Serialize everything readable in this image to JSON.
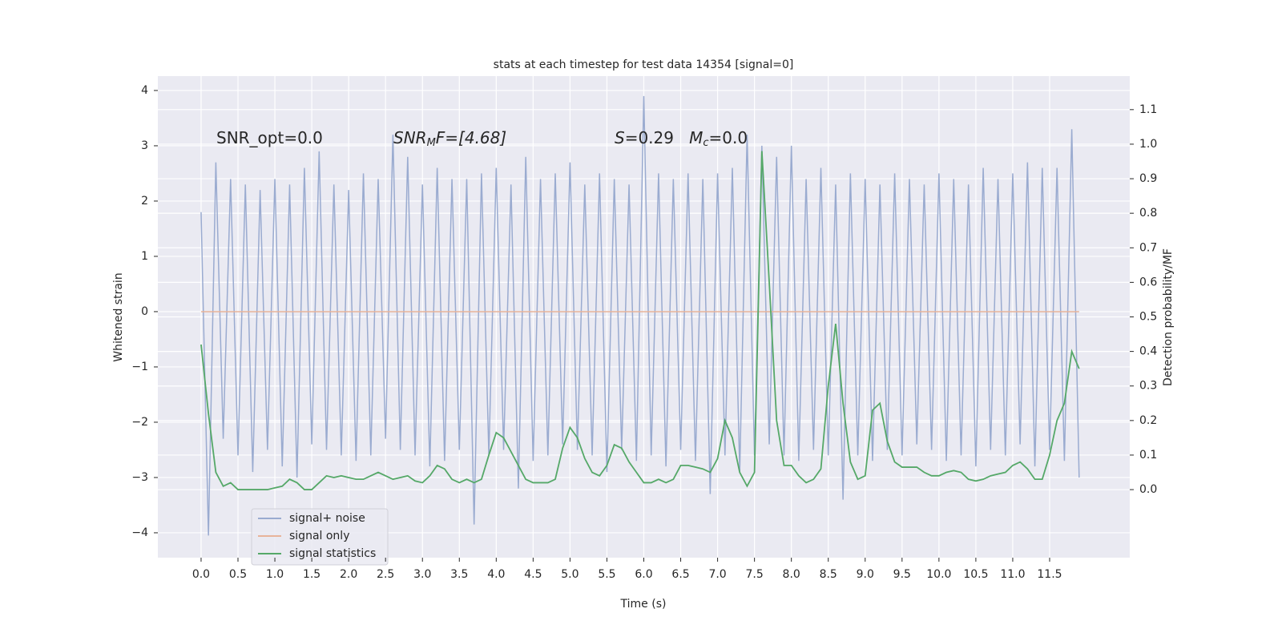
{
  "chart_data": {
    "type": "line",
    "title": "stats at each timestep for test data 14354 [signal=0]",
    "x_label": "Time (s)",
    "y_label": "Whitened strain",
    "y2_label": "Detection probability/MF",
    "annotations": [
      [
        "SNR_opt=0.0"
      ],
      [
        "SNR",
        "M",
        "F=[4.68]"
      ],
      [
        "S",
        "=0.29   ",
        "M",
        "c",
        "=0.0"
      ]
    ],
    "x": [
      0.0,
      0.1,
      0.2,
      0.3,
      0.4,
      0.5,
      0.6,
      0.7,
      0.8,
      0.9,
      1.0,
      1.1,
      1.2,
      1.3,
      1.4,
      1.5,
      1.6,
      1.7,
      1.8,
      1.9,
      2.0,
      2.1,
      2.2,
      2.3,
      2.4,
      2.5,
      2.6,
      2.7,
      2.8,
      2.9,
      3.0,
      3.1,
      3.2,
      3.3,
      3.4,
      3.5,
      3.6,
      3.7,
      3.8,
      3.9,
      4.0,
      4.1,
      4.2,
      4.3,
      4.4,
      4.5,
      4.6,
      4.7,
      4.8,
      4.9,
      5.0,
      5.1,
      5.2,
      5.3,
      5.4,
      5.5,
      5.6,
      5.7,
      5.8,
      5.9,
      6.0,
      6.1,
      6.2,
      6.3,
      6.4,
      6.5,
      6.6,
      6.7,
      6.8,
      6.9,
      7.0,
      7.1,
      7.2,
      7.3,
      7.4,
      7.5,
      7.6,
      7.7,
      7.8,
      7.9,
      8.0,
      8.1,
      8.2,
      8.3,
      8.4,
      8.5,
      8.6,
      8.7,
      8.8,
      8.9,
      9.0,
      9.1,
      9.2,
      9.3,
      9.4,
      9.5,
      9.6,
      9.7,
      9.8,
      9.9,
      10.0,
      10.1,
      10.2,
      10.3,
      10.4,
      10.5,
      10.6,
      10.7,
      10.8,
      10.9,
      11.0,
      11.1,
      11.2,
      11.3,
      11.4,
      11.5,
      11.6,
      11.7,
      11.8,
      11.9
    ],
    "series": [
      {
        "name": "signal+ noise",
        "color": "#9aabd0",
        "values": [
          1.8,
          -4.05,
          2.7,
          -2.3,
          2.4,
          -2.6,
          2.3,
          -2.9,
          2.2,
          -2.5,
          2.4,
          -2.8,
          2.3,
          -3.0,
          2.6,
          -2.4,
          2.9,
          -2.5,
          2.3,
          -2.6,
          2.2,
          -2.7,
          2.5,
          -2.6,
          2.4,
          -2.3,
          3.2,
          -2.5,
          2.8,
          -2.6,
          2.3,
          -2.8,
          2.6,
          -2.7,
          2.4,
          -2.5,
          2.4,
          -3.85,
          2.5,
          -2.6,
          2.6,
          -2.5,
          2.3,
          -3.2,
          2.8,
          -2.7,
          2.4,
          -2.6,
          2.5,
          -2.4,
          2.7,
          -2.5,
          2.3,
          -2.6,
          2.5,
          -2.9,
          2.4,
          -2.5,
          2.3,
          -2.7,
          3.9,
          -2.6,
          2.5,
          -2.8,
          2.4,
          -2.5,
          2.5,
          -2.7,
          2.4,
          -3.3,
          2.5,
          -2.6,
          2.6,
          -2.9,
          3.2,
          -2.6,
          3.0,
          -2.4,
          2.8,
          -2.6,
          3.0,
          -2.7,
          2.4,
          -2.5,
          2.6,
          -2.6,
          2.3,
          -3.4,
          2.5,
          -2.6,
          2.4,
          -2.7,
          2.3,
          -2.5,
          2.5,
          -2.6,
          2.4,
          -2.4,
          2.3,
          -2.5,
          2.5,
          -2.7,
          2.4,
          -2.6,
          2.3,
          -2.8,
          2.6,
          -2.5,
          2.4,
          -2.6,
          2.5,
          -2.4,
          2.7,
          -2.8,
          2.6,
          -2.5,
          2.6,
          -2.7,
          3.3,
          -3.0
        ]
      },
      {
        "name": "signal only",
        "color": "#e8b39a",
        "values": [
          0,
          0,
          0,
          0,
          0,
          0,
          0,
          0,
          0,
          0,
          0,
          0,
          0,
          0,
          0,
          0,
          0,
          0,
          0,
          0,
          0,
          0,
          0,
          0,
          0,
          0,
          0,
          0,
          0,
          0,
          0,
          0,
          0,
          0,
          0,
          0,
          0,
          0,
          0,
          0,
          0,
          0,
          0,
          0,
          0,
          0,
          0,
          0,
          0,
          0,
          0,
          0,
          0,
          0,
          0,
          0,
          0,
          0,
          0,
          0,
          0,
          0,
          0,
          0,
          0,
          0,
          0,
          0,
          0,
          0,
          0,
          0,
          0,
          0,
          0,
          0,
          0,
          0,
          0,
          0,
          0,
          0,
          0,
          0,
          0,
          0,
          0,
          0,
          0,
          0,
          0,
          0,
          0,
          0,
          0,
          0,
          0,
          0,
          0,
          0,
          0,
          0,
          0,
          0,
          0,
          0,
          0,
          0,
          0,
          0,
          0,
          0,
          0,
          0,
          0,
          0,
          0,
          0,
          0,
          0
        ]
      },
      {
        "name": "signal statistics",
        "color": "#55a868",
        "axis": "y2",
        "values": [
          0.42,
          0.22,
          0.05,
          0.01,
          0.02,
          0.0,
          0.0,
          0.0,
          0.0,
          0.0,
          0.005,
          0.01,
          0.03,
          0.02,
          0.0,
          0.0,
          0.02,
          0.04,
          0.035,
          0.04,
          0.035,
          0.03,
          0.03,
          0.04,
          0.05,
          0.04,
          0.03,
          0.035,
          0.04,
          0.025,
          0.02,
          0.04,
          0.07,
          0.06,
          0.03,
          0.02,
          0.03,
          0.02,
          0.03,
          0.1,
          0.165,
          0.15,
          0.11,
          0.07,
          0.03,
          0.02,
          0.02,
          0.02,
          0.03,
          0.12,
          0.18,
          0.15,
          0.09,
          0.05,
          0.04,
          0.07,
          0.13,
          0.12,
          0.08,
          0.05,
          0.02,
          0.02,
          0.03,
          0.02,
          0.03,
          0.07,
          0.07,
          0.065,
          0.06,
          0.05,
          0.09,
          0.2,
          0.15,
          0.05,
          0.01,
          0.05,
          0.98,
          0.6,
          0.2,
          0.07,
          0.07,
          0.04,
          0.02,
          0.03,
          0.06,
          0.3,
          0.48,
          0.25,
          0.08,
          0.03,
          0.04,
          0.23,
          0.25,
          0.14,
          0.08,
          0.065,
          0.065,
          0.065,
          0.05,
          0.04,
          0.04,
          0.05,
          0.055,
          0.05,
          0.03,
          0.025,
          0.03,
          0.04,
          0.045,
          0.05,
          0.07,
          0.08,
          0.06,
          0.03,
          0.03,
          0.1,
          0.2,
          0.25,
          0.4,
          0.35
        ]
      }
    ],
    "xlim": [
      -0.586,
      12.586
    ],
    "xticks": [
      {
        "value": 0,
        "label": "0.0"
      },
      0.5,
      {
        "value": 1,
        "label": "1.0"
      },
      1.5,
      {
        "value": 2,
        "label": "2.0"
      },
      2.5,
      {
        "value": 3,
        "label": "3.0"
      },
      3.5,
      {
        "value": 4,
        "label": "4.0"
      },
      4.5,
      {
        "value": 5,
        "label": "5.0"
      },
      5.5,
      {
        "value": 6,
        "label": "6.0"
      },
      6.5,
      {
        "value": 7,
        "label": "7.0"
      },
      7.5,
      {
        "value": 8,
        "label": "8.0"
      },
      8.5,
      {
        "value": 9,
        "label": "9.0"
      },
      9.5,
      {
        "value": 10,
        "label": "10.0"
      },
      10.5,
      {
        "value": 11,
        "label": "11.0"
      },
      11.5
    ],
    "ylim": [
      -4.45,
      4.26
    ],
    "yticks": [
      {
        "value": -4,
        "label": "−4"
      },
      {
        "value": -3,
        "label": "−3"
      },
      {
        "value": -2,
        "label": "−2"
      },
      {
        "value": -1,
        "label": "−1"
      },
      0,
      1,
      2,
      3,
      4
    ],
    "y2lim": [
      -0.197,
      1.197
    ],
    "y2ticks": [
      {
        "value": 0,
        "label": "0.0"
      },
      0.1,
      0.2,
      0.3,
      0.4,
      0.5,
      0.6,
      0.7,
      0.8,
      0.9,
      {
        "value": 1,
        "label": "1.0"
      },
      1.1
    ],
    "grid": true,
    "legend": "lower left"
  }
}
